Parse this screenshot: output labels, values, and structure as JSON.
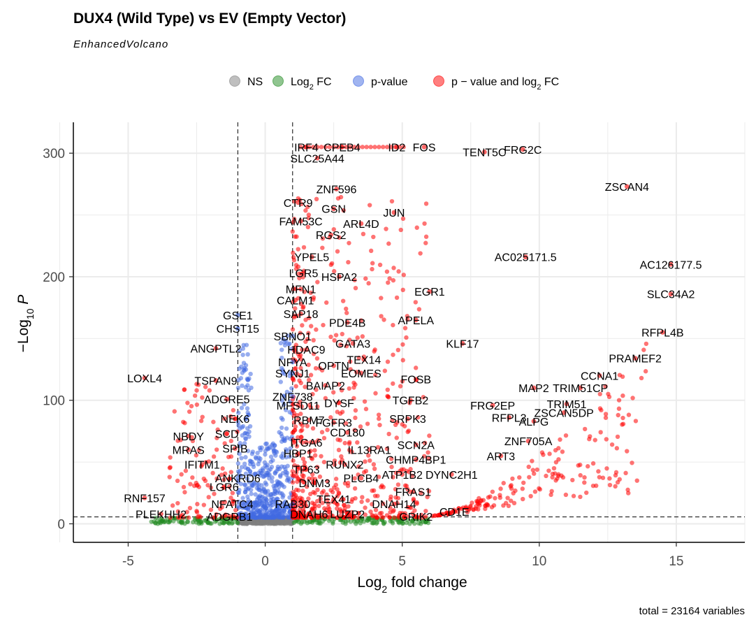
{
  "chart_data": {
    "type": "scatter",
    "title": "DUX4 (Wild Type) vs EV (Empty Vector)",
    "subtitle": "EnhancedVolcano",
    "caption": "total = 23164 variables",
    "xlabel": "Log2 fold change",
    "ylabel": "−Log10 P",
    "xlim": [
      -7,
      17.5
    ],
    "ylim": [
      -15,
      325
    ],
    "xticks": [
      -5,
      0,
      5,
      10,
      15
    ],
    "yticks": [
      0,
      100,
      200,
      300
    ],
    "grid": true,
    "legend_position": "top",
    "cutoffs": {
      "log2fc": [
        -1,
        1
      ],
      "p_value_line": 5.6
    },
    "legend": [
      {
        "key": "ns",
        "label": "NS",
        "color": "#808080"
      },
      {
        "key": "fc",
        "label": "Log2 FC",
        "sub": "2",
        "color": "#228B22"
      },
      {
        "key": "p",
        "label": "p-value",
        "color": "#4169E1"
      },
      {
        "key": "both",
        "label": "p − value and log2 FC",
        "sub": "2",
        "color": "#FF0000"
      }
    ],
    "labeled_points": [
      {
        "gene": "IRF4",
        "x": 1.5,
        "y": 305
      },
      {
        "gene": "CPEB4",
        "x": 2.8,
        "y": 305
      },
      {
        "gene": "ID2",
        "x": 4.8,
        "y": 305
      },
      {
        "gene": "FOS",
        "x": 5.8,
        "y": 305
      },
      {
        "gene": "TENT5C",
        "x": 8.0,
        "y": 301
      },
      {
        "gene": "FRG2C",
        "x": 9.4,
        "y": 303
      },
      {
        "gene": "SLC25A44",
        "x": 1.9,
        "y": 296
      },
      {
        "gene": "ZNF596",
        "x": 2.6,
        "y": 271
      },
      {
        "gene": "ZSCAN4",
        "x": 13.2,
        "y": 273
      },
      {
        "gene": "CTR9",
        "x": 1.2,
        "y": 260
      },
      {
        "gene": "GSN",
        "x": 2.5,
        "y": 255
      },
      {
        "gene": "JUN",
        "x": 4.7,
        "y": 252
      },
      {
        "gene": "FAM53C",
        "x": 1.3,
        "y": 245
      },
      {
        "gene": "ARL4D",
        "x": 3.5,
        "y": 243
      },
      {
        "gene": "RGS2",
        "x": 2.4,
        "y": 234
      },
      {
        "gene": "AC025171.5",
        "x": 9.5,
        "y": 216
      },
      {
        "gene": "YPEL5",
        "x": 1.7,
        "y": 216
      },
      {
        "gene": "AC126177.5",
        "x": 14.8,
        "y": 210
      },
      {
        "gene": "LGR5",
        "x": 1.4,
        "y": 203
      },
      {
        "gene": "HSPA2",
        "x": 2.7,
        "y": 200
      },
      {
        "gene": "MFN1",
        "x": 1.3,
        "y": 190
      },
      {
        "gene": "EGR1",
        "x": 6.0,
        "y": 188
      },
      {
        "gene": "SLC34A2",
        "x": 14.8,
        "y": 186
      },
      {
        "gene": "CALM1",
        "x": 1.1,
        "y": 181
      },
      {
        "gene": "SAP18",
        "x": 1.3,
        "y": 170
      },
      {
        "gene": "GSE1",
        "x": -1.0,
        "y": 169
      },
      {
        "gene": "PDE4B",
        "x": 3.0,
        "y": 163
      },
      {
        "gene": "APELA",
        "x": 5.5,
        "y": 165
      },
      {
        "gene": "CHST15",
        "x": -1.0,
        "y": 158
      },
      {
        "gene": "RFPL4B",
        "x": 14.5,
        "y": 155
      },
      {
        "gene": "SBNO1",
        "x": 1.0,
        "y": 152
      },
      {
        "gene": "GATA3",
        "x": 3.2,
        "y": 146
      },
      {
        "gene": "KLF17",
        "x": 7.2,
        "y": 146
      },
      {
        "gene": "ANGPTL2",
        "x": -1.8,
        "y": 142
      },
      {
        "gene": "HDAC9",
        "x": 1.5,
        "y": 141
      },
      {
        "gene": "PRAMEF2",
        "x": 13.5,
        "y": 134
      },
      {
        "gene": "TEX14",
        "x": 3.6,
        "y": 133
      },
      {
        "gene": "NFYA",
        "x": 1.0,
        "y": 131
      },
      {
        "gene": "OPTN",
        "x": 2.5,
        "y": 128
      },
      {
        "gene": "CCNA1",
        "x": 12.2,
        "y": 120
      },
      {
        "gene": "LOXL4",
        "x": -4.4,
        "y": 118
      },
      {
        "gene": "SYNJ1",
        "x": 1.0,
        "y": 122
      },
      {
        "gene": "EOMES",
        "x": 3.5,
        "y": 122
      },
      {
        "gene": "TSPAN9",
        "x": -1.8,
        "y": 116
      },
      {
        "gene": "FOSB",
        "x": 5.5,
        "y": 117
      },
      {
        "gene": "BAIAP2",
        "x": 2.2,
        "y": 112
      },
      {
        "gene": "TRIM51CP",
        "x": 11.5,
        "y": 110
      },
      {
        "gene": "MAP2",
        "x": 9.8,
        "y": 110
      },
      {
        "gene": "ZNF738",
        "x": 1.0,
        "y": 103
      },
      {
        "gene": "ADGRE5",
        "x": -1.4,
        "y": 101
      },
      {
        "gene": "TRIM51",
        "x": 11.0,
        "y": 97
      },
      {
        "gene": "TGFB2",
        "x": 5.3,
        "y": 100
      },
      {
        "gene": "FRG2EP",
        "x": 8.3,
        "y": 96
      },
      {
        "gene": "DYSF",
        "x": 2.7,
        "y": 98
      },
      {
        "gene": "MFSD11",
        "x": 1.2,
        "y": 96
      },
      {
        "gene": "ZSCAN5DP",
        "x": 10.9,
        "y": 90
      },
      {
        "gene": "NEK6",
        "x": -1.1,
        "y": 85
      },
      {
        "gene": "RFPL3",
        "x": 8.9,
        "y": 86
      },
      {
        "gene": "ALPG",
        "x": 9.8,
        "y": 83
      },
      {
        "gene": "SRPK3",
        "x": 5.2,
        "y": 85
      },
      {
        "gene": "RBM7",
        "x": 1.6,
        "y": 84
      },
      {
        "gene": "FGFR3",
        "x": 2.5,
        "y": 82
      },
      {
        "gene": "CD180",
        "x": 3.0,
        "y": 74
      },
      {
        "gene": "SCD",
        "x": -1.4,
        "y": 73
      },
      {
        "gene": "NBDY",
        "x": -2.8,
        "y": 71
      },
      {
        "gene": "ZNF705A",
        "x": 9.6,
        "y": 67
      },
      {
        "gene": "ITGA6",
        "x": 1.5,
        "y": 66
      },
      {
        "gene": "SCN2A",
        "x": 5.5,
        "y": 64
      },
      {
        "gene": "MRAS",
        "x": -2.8,
        "y": 60
      },
      {
        "gene": "SPIB",
        "x": -1.1,
        "y": 61
      },
      {
        "gene": "IL13RA1",
        "x": 3.8,
        "y": 60
      },
      {
        "gene": "HBP1",
        "x": 1.2,
        "y": 57
      },
      {
        "gene": "ART3",
        "x": 8.6,
        "y": 55
      },
      {
        "gene": "CHMP4BP1",
        "x": 5.5,
        "y": 52
      },
      {
        "gene": "IFITM1",
        "x": -2.3,
        "y": 48
      },
      {
        "gene": "RUNX2",
        "x": 2.9,
        "y": 48
      },
      {
        "gene": "TP63",
        "x": 1.5,
        "y": 44
      },
      {
        "gene": "ATP1B2",
        "x": 5.0,
        "y": 40
      },
      {
        "gene": "DYNC2H1",
        "x": 6.8,
        "y": 40
      },
      {
        "gene": "ANKRD6",
        "x": -1.0,
        "y": 37
      },
      {
        "gene": "PLCB4",
        "x": 3.5,
        "y": 37
      },
      {
        "gene": "DNM3",
        "x": 1.8,
        "y": 33
      },
      {
        "gene": "LGR6",
        "x": -1.5,
        "y": 30
      },
      {
        "gene": "FRAS1",
        "x": 5.4,
        "y": 26
      },
      {
        "gene": "RNF157",
        "x": -4.4,
        "y": 21
      },
      {
        "gene": "TEX41",
        "x": 2.5,
        "y": 20
      },
      {
        "gene": "NFATC4",
        "x": -1.2,
        "y": 16
      },
      {
        "gene": "RAB30",
        "x": 1.0,
        "y": 16
      },
      {
        "gene": "DNAH14",
        "x": 4.7,
        "y": 16
      },
      {
        "gene": "CD1E",
        "x": 6.9,
        "y": 10
      },
      {
        "gene": "PLEKHH2",
        "x": -3.8,
        "y": 8
      },
      {
        "gene": "DNAH6",
        "x": 1.6,
        "y": 8
      },
      {
        "gene": "LUZP2",
        "x": 3.0,
        "y": 8
      },
      {
        "gene": "ADGRB1",
        "x": -1.3,
        "y": 6
      },
      {
        "gene": "GRIK2",
        "x": 5.5,
        "y": 6
      }
    ]
  }
}
